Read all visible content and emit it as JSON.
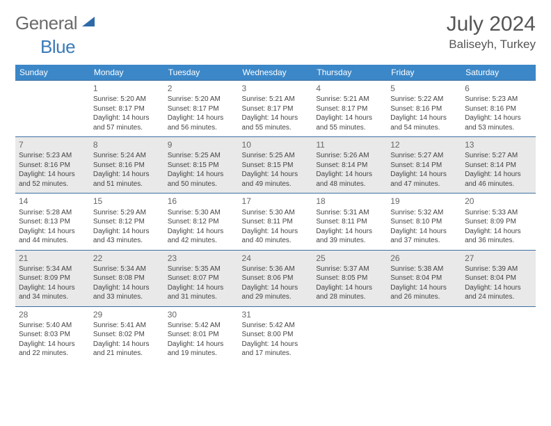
{
  "logo": {
    "text1": "General",
    "text2": "Blue"
  },
  "title": "July 2024",
  "location": "Baliseyh, Turkey",
  "colors": {
    "header_bg": "#3b87c8",
    "header_text": "#ffffff",
    "row_border": "#3b6fa0",
    "row_alt_bg": "#e9e9e9",
    "row_bg": "#ffffff",
    "logo_gray": "#6b6b6b",
    "logo_blue": "#3a7ab8"
  },
  "weekdays": [
    "Sunday",
    "Monday",
    "Tuesday",
    "Wednesday",
    "Thursday",
    "Friday",
    "Saturday"
  ],
  "days": [
    {
      "n": 1,
      "sr": "5:20 AM",
      "ss": "8:17 PM",
      "dl": "14 hours and 57 minutes."
    },
    {
      "n": 2,
      "sr": "5:20 AM",
      "ss": "8:17 PM",
      "dl": "14 hours and 56 minutes."
    },
    {
      "n": 3,
      "sr": "5:21 AM",
      "ss": "8:17 PM",
      "dl": "14 hours and 55 minutes."
    },
    {
      "n": 4,
      "sr": "5:21 AM",
      "ss": "8:17 PM",
      "dl": "14 hours and 55 minutes."
    },
    {
      "n": 5,
      "sr": "5:22 AM",
      "ss": "8:16 PM",
      "dl": "14 hours and 54 minutes."
    },
    {
      "n": 6,
      "sr": "5:23 AM",
      "ss": "8:16 PM",
      "dl": "14 hours and 53 minutes."
    },
    {
      "n": 7,
      "sr": "5:23 AM",
      "ss": "8:16 PM",
      "dl": "14 hours and 52 minutes."
    },
    {
      "n": 8,
      "sr": "5:24 AM",
      "ss": "8:16 PM",
      "dl": "14 hours and 51 minutes."
    },
    {
      "n": 9,
      "sr": "5:25 AM",
      "ss": "8:15 PM",
      "dl": "14 hours and 50 minutes."
    },
    {
      "n": 10,
      "sr": "5:25 AM",
      "ss": "8:15 PM",
      "dl": "14 hours and 49 minutes."
    },
    {
      "n": 11,
      "sr": "5:26 AM",
      "ss": "8:14 PM",
      "dl": "14 hours and 48 minutes."
    },
    {
      "n": 12,
      "sr": "5:27 AM",
      "ss": "8:14 PM",
      "dl": "14 hours and 47 minutes."
    },
    {
      "n": 13,
      "sr": "5:27 AM",
      "ss": "8:14 PM",
      "dl": "14 hours and 46 minutes."
    },
    {
      "n": 14,
      "sr": "5:28 AM",
      "ss": "8:13 PM",
      "dl": "14 hours and 44 minutes."
    },
    {
      "n": 15,
      "sr": "5:29 AM",
      "ss": "8:12 PM",
      "dl": "14 hours and 43 minutes."
    },
    {
      "n": 16,
      "sr": "5:30 AM",
      "ss": "8:12 PM",
      "dl": "14 hours and 42 minutes."
    },
    {
      "n": 17,
      "sr": "5:30 AM",
      "ss": "8:11 PM",
      "dl": "14 hours and 40 minutes."
    },
    {
      "n": 18,
      "sr": "5:31 AM",
      "ss": "8:11 PM",
      "dl": "14 hours and 39 minutes."
    },
    {
      "n": 19,
      "sr": "5:32 AM",
      "ss": "8:10 PM",
      "dl": "14 hours and 37 minutes."
    },
    {
      "n": 20,
      "sr": "5:33 AM",
      "ss": "8:09 PM",
      "dl": "14 hours and 36 minutes."
    },
    {
      "n": 21,
      "sr": "5:34 AM",
      "ss": "8:09 PM",
      "dl": "14 hours and 34 minutes."
    },
    {
      "n": 22,
      "sr": "5:34 AM",
      "ss": "8:08 PM",
      "dl": "14 hours and 33 minutes."
    },
    {
      "n": 23,
      "sr": "5:35 AM",
      "ss": "8:07 PM",
      "dl": "14 hours and 31 minutes."
    },
    {
      "n": 24,
      "sr": "5:36 AM",
      "ss": "8:06 PM",
      "dl": "14 hours and 29 minutes."
    },
    {
      "n": 25,
      "sr": "5:37 AM",
      "ss": "8:05 PM",
      "dl": "14 hours and 28 minutes."
    },
    {
      "n": 26,
      "sr": "5:38 AM",
      "ss": "8:04 PM",
      "dl": "14 hours and 26 minutes."
    },
    {
      "n": 27,
      "sr": "5:39 AM",
      "ss": "8:04 PM",
      "dl": "14 hours and 24 minutes."
    },
    {
      "n": 28,
      "sr": "5:40 AM",
      "ss": "8:03 PM",
      "dl": "14 hours and 22 minutes."
    },
    {
      "n": 29,
      "sr": "5:41 AM",
      "ss": "8:02 PM",
      "dl": "14 hours and 21 minutes."
    },
    {
      "n": 30,
      "sr": "5:42 AM",
      "ss": "8:01 PM",
      "dl": "14 hours and 19 minutes."
    },
    {
      "n": 31,
      "sr": "5:42 AM",
      "ss": "8:00 PM",
      "dl": "14 hours and 17 minutes."
    }
  ],
  "labels": {
    "sunrise": "Sunrise:",
    "sunset": "Sunset:",
    "daylight": "Daylight:"
  },
  "layout": {
    "start_weekday": 1,
    "rows": 5,
    "cols": 7
  }
}
